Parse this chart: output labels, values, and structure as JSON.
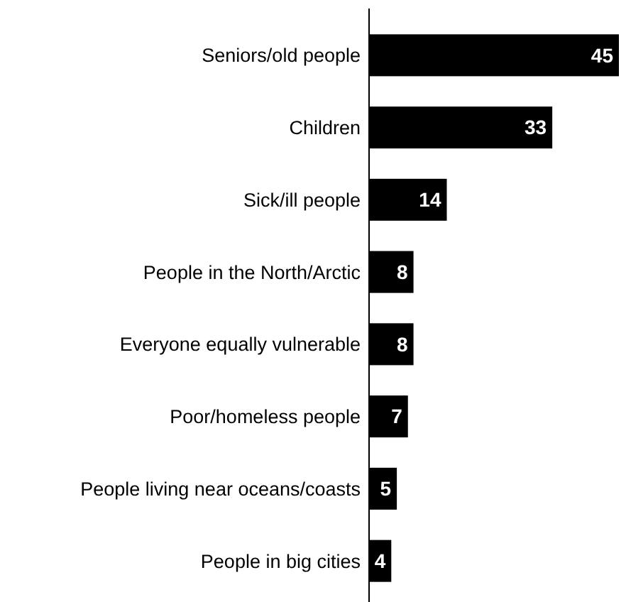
{
  "chart_data": {
    "type": "bar",
    "orientation": "horizontal",
    "categories": [
      "Seniors/old people",
      "Children",
      "Sick/ill people",
      "People in the North/Arctic",
      "Everyone equally vulnerable",
      "Poor/homeless people",
      "People living near oceans/coasts",
      "People in big cities"
    ],
    "values": [
      45,
      33,
      14,
      8,
      8,
      7,
      5,
      4
    ],
    "color": "#000000",
    "data_labels": true
  }
}
